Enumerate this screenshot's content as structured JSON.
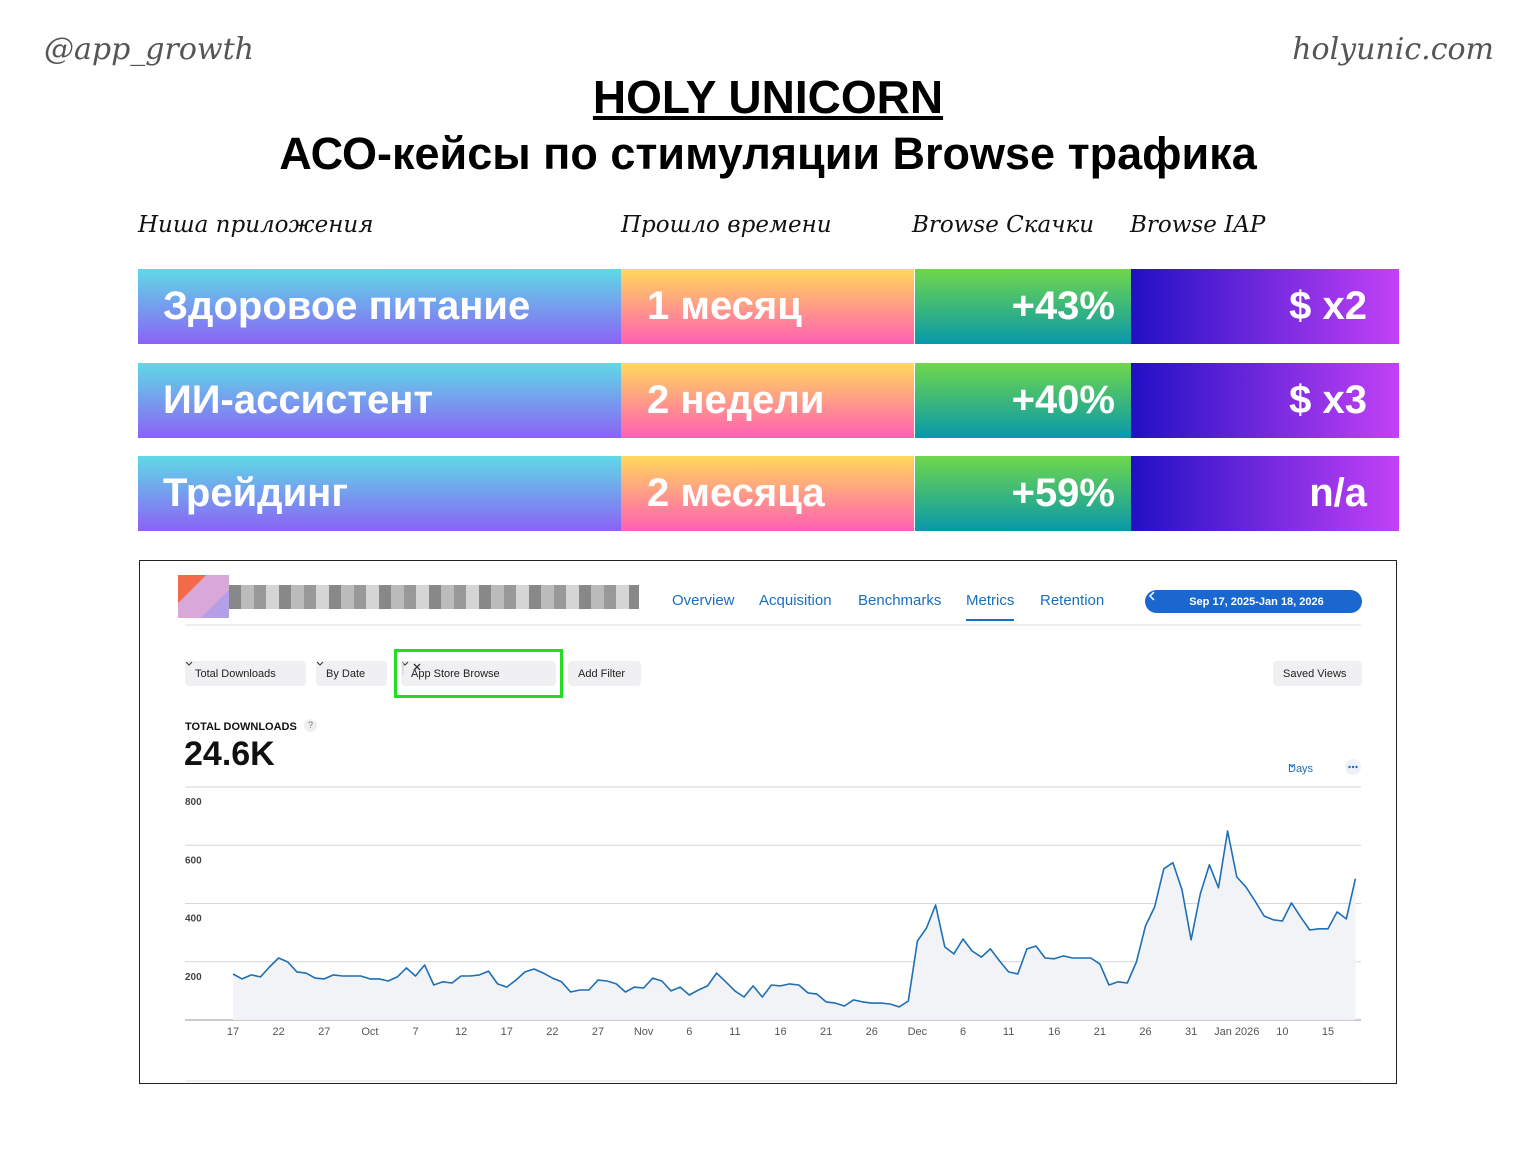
{
  "header": {
    "handle": "@app_growth",
    "site": "holyunic.com",
    "title": "HOLY UNICORN",
    "subtitle": "АСО-кейсы по стимуляции Browse трафика"
  },
  "table": {
    "columns": [
      "Ниша приложения",
      "Прошло времени",
      "Browse Скачки",
      "Browse IAP"
    ],
    "rows": [
      [
        "Здоровое питание",
        "1 месяц",
        "+43%",
        "$ x2"
      ],
      [
        "ИИ-ассистент",
        "2 недели",
        "+40%",
        "$ x3"
      ],
      [
        "Трейдинг",
        "2 месяца",
        "+59%",
        "n/a"
      ]
    ]
  },
  "dashboard": {
    "tabs": [
      "Overview",
      "Acquisition",
      "Benchmarks",
      "Metrics",
      "Retention"
    ],
    "active_tab": 3,
    "date_range": "Sep 17, 2025-Jan 18, 2026",
    "filters": [
      "Total Downloads",
      "By Date",
      "App Store Browse"
    ],
    "add_filter": "Add Filter",
    "saved_views": "Saved Views",
    "metric_label": "TOTAL DOWNLOADS",
    "metric_help": "?",
    "metric_value": "24.6K",
    "interval": "Days"
  },
  "chart_data": {
    "type": "line",
    "color": "#1f6fb5",
    "grid": true,
    "categories": [
      "17",
      null,
      null,
      null,
      null,
      "22",
      null,
      null,
      null,
      null,
      "27",
      null,
      null,
      null,
      null,
      "Oct",
      null,
      null,
      null,
      null,
      "7",
      null,
      null,
      null,
      null,
      "12",
      null,
      null,
      null,
      null,
      "17",
      null,
      null,
      null,
      null,
      "22",
      null,
      null,
      null,
      null,
      "27",
      null,
      null,
      null,
      null,
      "Nov",
      null,
      null,
      null,
      null,
      "6",
      null,
      null,
      null,
      null,
      "11",
      null,
      null,
      null,
      null,
      "16",
      null,
      null,
      null,
      null,
      "21",
      null,
      null,
      null,
      null,
      "26",
      null,
      null,
      null,
      null,
      "Dec",
      null,
      null,
      null,
      null,
      "6",
      null,
      null,
      null,
      null,
      "11",
      null,
      null,
      null,
      null,
      "16",
      null,
      null,
      null,
      null,
      "21",
      null,
      null,
      null,
      null,
      "26",
      null,
      null,
      null,
      null,
      "31",
      null,
      null,
      null,
      null,
      "Jan 2026",
      null,
      null,
      null,
      null,
      "10",
      null,
      null,
      null,
      null,
      "15",
      null,
      null,
      null
    ],
    "values": [
      158,
      141,
      155,
      148,
      182,
      213,
      199,
      165,
      161,
      144,
      141,
      155,
      151,
      151,
      151,
      141,
      141,
      134,
      148,
      179,
      151,
      189,
      120,
      131,
      127,
      151,
      151,
      155,
      168,
      124,
      113,
      137,
      165,
      175,
      161,
      144,
      131,
      96,
      103,
      103,
      137,
      134,
      124,
      96,
      113,
      110,
      144,
      134,
      100,
      113,
      86,
      103,
      117,
      161,
      131,
      100,
      79,
      117,
      79,
      120,
      117,
      124,
      120,
      93,
      89,
      62,
      58,
      48,
      69,
      62,
      58,
      58,
      55,
      45,
      65,
      271,
      316,
      395,
      251,
      227,
      278,
      237,
      216,
      244,
      203,
      165,
      158,
      244,
      254,
      213,
      210,
      220,
      213,
      213,
      213,
      192,
      120,
      131,
      127,
      199,
      323,
      388,
      519,
      540,
      447,
      275,
      433,
      533,
      454,
      649,
      491,
      457,
      409,
      357,
      344,
      340,
      402,
      354,
      309,
      313,
      313,
      371,
      347,
      485
    ],
    "ylim": [
      0,
      800
    ],
    "yticks": [
      200,
      400,
      600,
      800
    ]
  }
}
